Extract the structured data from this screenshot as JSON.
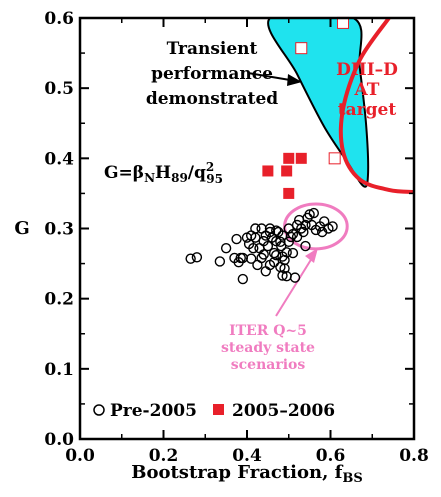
{
  "chart_data": {
    "type": "scatter",
    "xlabel": "Bootstrap Fraction, f",
    "xlabel_sub": "BS",
    "ylabel": "G",
    "xlim": [
      0.0,
      0.8
    ],
    "ylim": [
      0.0,
      0.6
    ],
    "x_ticks": [
      "0.0",
      "0.2",
      "0.4",
      "0.6",
      "0.8"
    ],
    "y_ticks": [
      "0.0",
      "0.1",
      "0.2",
      "0.3",
      "0.4",
      "0.5",
      "0.6"
    ],
    "formula": {
      "lhs": "G=",
      "beta": "β",
      "beta_sub": "N",
      "h": "H",
      "h_sub": "89",
      "slash": "/q",
      "q_sup": "2",
      "q_sub": "95"
    },
    "annotations": {
      "transient": [
        "Transient",
        "performance",
        "demonstrated"
      ],
      "diii": [
        "DIII–D",
        "AT",
        "target"
      ],
      "iter": [
        "ITER Q~5",
        "steady state",
        "scenarios"
      ]
    },
    "legend": {
      "pre": "Pre-2005",
      "new": "2005–2006"
    },
    "colors": {
      "cyan": "#1fe3ee",
      "red": "#e8202a",
      "pink": "#f07cc0",
      "black": "#000000"
    },
    "series": [
      {
        "name": "Pre-2005",
        "marker": "open-circle",
        "points": [
          [
            0.265,
            0.257
          ],
          [
            0.28,
            0.259
          ],
          [
            0.335,
            0.253
          ],
          [
            0.35,
            0.272
          ],
          [
            0.37,
            0.258
          ],
          [
            0.38,
            0.252
          ],
          [
            0.39,
            0.258
          ],
          [
            0.39,
            0.228
          ],
          [
            0.375,
            0.285
          ],
          [
            0.4,
            0.287
          ],
          [
            0.405,
            0.278
          ],
          [
            0.41,
            0.29
          ],
          [
            0.415,
            0.272
          ],
          [
            0.42,
            0.287
          ],
          [
            0.42,
            0.3
          ],
          [
            0.43,
            0.272
          ],
          [
            0.425,
            0.248
          ],
          [
            0.435,
            0.258
          ],
          [
            0.435,
            0.3
          ],
          [
            0.44,
            0.282
          ],
          [
            0.44,
            0.263
          ],
          [
            0.445,
            0.29
          ],
          [
            0.445,
            0.239
          ],
          [
            0.45,
            0.275
          ],
          [
            0.455,
            0.295
          ],
          [
            0.455,
            0.3
          ],
          [
            0.455,
            0.248
          ],
          [
            0.46,
            0.287
          ],
          [
            0.465,
            0.265
          ],
          [
            0.465,
            0.252
          ],
          [
            0.47,
            0.262
          ],
          [
            0.47,
            0.282
          ],
          [
            0.47,
            0.297
          ],
          [
            0.475,
            0.295
          ],
          [
            0.48,
            0.281
          ],
          [
            0.48,
            0.245
          ],
          [
            0.482,
            0.275
          ],
          [
            0.485,
            0.26
          ],
          [
            0.485,
            0.29
          ],
          [
            0.49,
            0.243
          ],
          [
            0.49,
            0.255
          ],
          [
            0.495,
            0.266
          ],
          [
            0.495,
            0.232
          ],
          [
            0.5,
            0.281
          ],
          [
            0.5,
            0.3
          ],
          [
            0.505,
            0.288
          ],
          [
            0.51,
            0.292
          ],
          [
            0.51,
            0.265
          ],
          [
            0.515,
            0.23
          ],
          [
            0.52,
            0.305
          ],
          [
            0.52,
            0.288
          ],
          [
            0.525,
            0.312
          ],
          [
            0.53,
            0.3
          ],
          [
            0.535,
            0.295
          ],
          [
            0.54,
            0.305
          ],
          [
            0.545,
            0.315
          ],
          [
            0.55,
            0.32
          ],
          [
            0.555,
            0.305
          ],
          [
            0.56,
            0.322
          ],
          [
            0.565,
            0.298
          ],
          [
            0.575,
            0.303
          ],
          [
            0.58,
            0.295
          ],
          [
            0.585,
            0.31
          ],
          [
            0.595,
            0.3
          ],
          [
            0.605,
            0.303
          ],
          [
            0.54,
            0.275
          ],
          [
            0.485,
            0.233
          ],
          [
            0.385,
            0.258
          ],
          [
            0.41,
            0.257
          ]
        ]
      },
      {
        "name": "2005–2006",
        "marker": "filled-square",
        "points": [
          [
            0.45,
            0.382
          ],
          [
            0.495,
            0.382
          ],
          [
            0.5,
            0.4
          ],
          [
            0.53,
            0.4
          ],
          [
            0.5,
            0.35
          ]
        ]
      },
      {
        "marker": "open-square-on-boundary",
        "points": [
          [
            0.63,
            0.593
          ],
          [
            0.53,
            0.557
          ],
          [
            0.61,
            0.4
          ]
        ]
      }
    ],
    "regions": [
      {
        "kind": "transient",
        "boundary": [
          [
            0.455,
            0.6
          ],
          [
            0.52,
            0.52
          ],
          [
            0.585,
            0.445
          ],
          [
            0.64,
            0.395
          ],
          [
            0.68,
            0.36
          ],
          [
            0.69,
            0.38
          ],
          [
            0.685,
            0.45
          ],
          [
            0.67,
            0.53
          ],
          [
            0.655,
            0.6
          ]
        ]
      },
      {
        "kind": "diii-target",
        "boundary": [
          [
            0.74,
            0.6
          ],
          [
            0.67,
            0.54
          ],
          [
            0.63,
            0.47
          ],
          [
            0.63,
            0.41
          ],
          [
            0.67,
            0.37
          ],
          [
            0.74,
            0.355
          ],
          [
            0.8,
            0.352
          ]
        ]
      },
      {
        "kind": "iter",
        "center": [
          0.565,
          0.303
        ],
        "rx": 0.075,
        "ry": 0.032
      }
    ]
  }
}
